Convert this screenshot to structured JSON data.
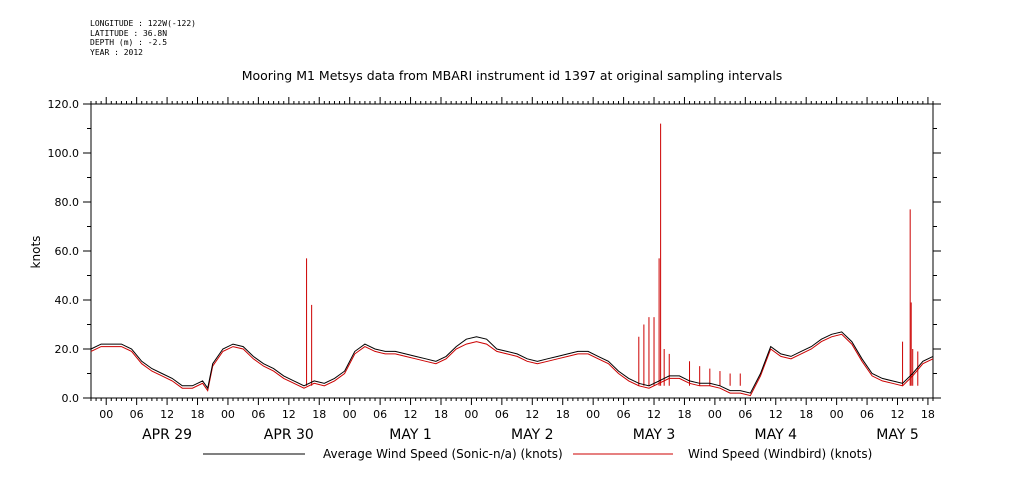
{
  "header": {
    "longitude": "LONGITUDE : 122W(-122)",
    "latitude": "LATITUDE : 36.8N",
    "depth": "DEPTH (m) : -2.5",
    "year": "YEAR : 2012"
  },
  "chart_data": {
    "type": "line",
    "title": "Mooring M1 Metsys data from MBARI instrument id 1397 at original sampling intervals",
    "ylabel": "knots",
    "xlabel": "",
    "x_unit": "hours since APR 28 21:00 (2012)",
    "xlim": [
      0,
      166
    ],
    "ylim": [
      0,
      120
    ],
    "y_ticks": [
      0,
      20,
      40,
      60,
      80,
      100,
      120
    ],
    "hour_ticks": [
      {
        "x": 3,
        "label": "00"
      },
      {
        "x": 9,
        "label": "06"
      },
      {
        "x": 15,
        "label": "12"
      },
      {
        "x": 21,
        "label": "18"
      },
      {
        "x": 27,
        "label": "00"
      },
      {
        "x": 33,
        "label": "06"
      },
      {
        "x": 39,
        "label": "12"
      },
      {
        "x": 45,
        "label": "18"
      },
      {
        "x": 51,
        "label": "00"
      },
      {
        "x": 57,
        "label": "06"
      },
      {
        "x": 63,
        "label": "12"
      },
      {
        "x": 69,
        "label": "18"
      },
      {
        "x": 75,
        "label": "00"
      },
      {
        "x": 81,
        "label": "06"
      },
      {
        "x": 87,
        "label": "12"
      },
      {
        "x": 93,
        "label": "18"
      },
      {
        "x": 99,
        "label": "00"
      },
      {
        "x": 105,
        "label": "06"
      },
      {
        "x": 111,
        "label": "12"
      },
      {
        "x": 117,
        "label": "18"
      },
      {
        "x": 123,
        "label": "00"
      },
      {
        "x": 129,
        "label": "06"
      },
      {
        "x": 135,
        "label": "12"
      },
      {
        "x": 141,
        "label": "18"
      },
      {
        "x": 147,
        "label": "00"
      },
      {
        "x": 153,
        "label": "06"
      },
      {
        "x": 159,
        "label": "12"
      },
      {
        "x": 165,
        "label": "18"
      }
    ],
    "day_labels": [
      {
        "x": 15,
        "label": "APR 29"
      },
      {
        "x": 39,
        "label": "APR 30"
      },
      {
        "x": 63,
        "label": "MAY  1"
      },
      {
        "x": 87,
        "label": "MAY  2"
      },
      {
        "x": 111,
        "label": "MAY  3"
      },
      {
        "x": 135,
        "label": "MAY  4"
      },
      {
        "x": 159,
        "label": "MAY  5"
      }
    ],
    "legend_position": "bottom",
    "series": [
      {
        "name": "Average Wind Speed (Sonic-n/a) (knots)",
        "color": "#000000",
        "points": [
          [
            0,
            20
          ],
          [
            2,
            22
          ],
          [
            4,
            22
          ],
          [
            6,
            22
          ],
          [
            8,
            20
          ],
          [
            10,
            15
          ],
          [
            12,
            12
          ],
          [
            14,
            10
          ],
          [
            16,
            8
          ],
          [
            18,
            5
          ],
          [
            20,
            5
          ],
          [
            22,
            7
          ],
          [
            23,
            4
          ],
          [
            24,
            14
          ],
          [
            26,
            20
          ],
          [
            28,
            22
          ],
          [
            30,
            21
          ],
          [
            32,
            17
          ],
          [
            34,
            14
          ],
          [
            36,
            12
          ],
          [
            38,
            9
          ],
          [
            40,
            7
          ],
          [
            42,
            5
          ],
          [
            44,
            7
          ],
          [
            46,
            6
          ],
          [
            48,
            8
          ],
          [
            50,
            11
          ],
          [
            52,
            19
          ],
          [
            54,
            22
          ],
          [
            56,
            20
          ],
          [
            58,
            19
          ],
          [
            60,
            19
          ],
          [
            62,
            18
          ],
          [
            64,
            17
          ],
          [
            66,
            16
          ],
          [
            68,
            15
          ],
          [
            70,
            17
          ],
          [
            72,
            21
          ],
          [
            74,
            24
          ],
          [
            76,
            25
          ],
          [
            78,
            24
          ],
          [
            80,
            20
          ],
          [
            82,
            19
          ],
          [
            84,
            18
          ],
          [
            86,
            16
          ],
          [
            88,
            15
          ],
          [
            90,
            16
          ],
          [
            92,
            17
          ],
          [
            94,
            18
          ],
          [
            96,
            19
          ],
          [
            98,
            19
          ],
          [
            100,
            17
          ],
          [
            102,
            15
          ],
          [
            104,
            11
          ],
          [
            106,
            8
          ],
          [
            108,
            6
          ],
          [
            110,
            5
          ],
          [
            112,
            7
          ],
          [
            114,
            9
          ],
          [
            116,
            9
          ],
          [
            118,
            7
          ],
          [
            120,
            6
          ],
          [
            122,
            6
          ],
          [
            124,
            5
          ],
          [
            126,
            3
          ],
          [
            128,
            3
          ],
          [
            130,
            2
          ],
          [
            132,
            10
          ],
          [
            134,
            21
          ],
          [
            136,
            18
          ],
          [
            138,
            17
          ],
          [
            140,
            19
          ],
          [
            142,
            21
          ],
          [
            144,
            24
          ],
          [
            146,
            26
          ],
          [
            148,
            27
          ],
          [
            150,
            23
          ],
          [
            152,
            16
          ],
          [
            154,
            10
          ],
          [
            156,
            8
          ],
          [
            158,
            7
          ],
          [
            160,
            6
          ],
          [
            162,
            10
          ],
          [
            164,
            15
          ],
          [
            166,
            17
          ]
        ]
      },
      {
        "name": "Wind Speed (Windbird) (knots)",
        "color": "#cc0000",
        "points": [
          [
            0,
            19
          ],
          [
            2,
            21
          ],
          [
            4,
            21
          ],
          [
            6,
            21
          ],
          [
            8,
            19
          ],
          [
            10,
            14
          ],
          [
            12,
            11
          ],
          [
            14,
            9
          ],
          [
            16,
            7
          ],
          [
            18,
            4
          ],
          [
            20,
            4
          ],
          [
            22,
            6
          ],
          [
            23,
            3
          ],
          [
            24,
            13
          ],
          [
            26,
            19
          ],
          [
            28,
            21
          ],
          [
            30,
            20
          ],
          [
            32,
            16
          ],
          [
            34,
            13
          ],
          [
            36,
            11
          ],
          [
            38,
            8
          ],
          [
            40,
            6
          ],
          [
            42,
            4
          ],
          [
            44,
            6
          ],
          [
            46,
            5
          ],
          [
            48,
            7
          ],
          [
            50,
            10
          ],
          [
            52,
            18
          ],
          [
            54,
            21
          ],
          [
            56,
            19
          ],
          [
            58,
            18
          ],
          [
            60,
            18
          ],
          [
            62,
            17
          ],
          [
            64,
            16
          ],
          [
            66,
            15
          ],
          [
            68,
            14
          ],
          [
            70,
            16
          ],
          [
            72,
            20
          ],
          [
            74,
            22
          ],
          [
            76,
            23
          ],
          [
            78,
            22
          ],
          [
            80,
            19
          ],
          [
            82,
            18
          ],
          [
            84,
            17
          ],
          [
            86,
            15
          ],
          [
            88,
            14
          ],
          [
            90,
            15
          ],
          [
            92,
            16
          ],
          [
            94,
            17
          ],
          [
            96,
            18
          ],
          [
            98,
            18
          ],
          [
            100,
            16
          ],
          [
            102,
            14
          ],
          [
            104,
            10
          ],
          [
            106,
            7
          ],
          [
            108,
            5
          ],
          [
            110,
            4
          ],
          [
            112,
            6
          ],
          [
            114,
            8
          ],
          [
            116,
            8
          ],
          [
            118,
            6
          ],
          [
            120,
            5
          ],
          [
            122,
            5
          ],
          [
            124,
            4
          ],
          [
            126,
            2
          ],
          [
            128,
            2
          ],
          [
            130,
            1
          ],
          [
            132,
            9
          ],
          [
            134,
            20
          ],
          [
            136,
            17
          ],
          [
            138,
            16
          ],
          [
            140,
            18
          ],
          [
            142,
            20
          ],
          [
            144,
            23
          ],
          [
            146,
            25
          ],
          [
            148,
            26
          ],
          [
            150,
            22
          ],
          [
            152,
            15
          ],
          [
            154,
            9
          ],
          [
            156,
            7
          ],
          [
            158,
            6
          ],
          [
            160,
            5
          ],
          [
            162,
            9
          ],
          [
            164,
            14
          ],
          [
            166,
            16
          ]
        ],
        "spikes": [
          [
            42.5,
            57
          ],
          [
            43.5,
            38
          ],
          [
            108,
            25
          ],
          [
            109,
            30
          ],
          [
            110,
            33
          ],
          [
            111,
            33
          ],
          [
            112,
            57
          ],
          [
            112.3,
            112
          ],
          [
            113,
            20
          ],
          [
            114,
            18
          ],
          [
            118,
            15
          ],
          [
            120,
            13
          ],
          [
            122,
            12
          ],
          [
            124,
            11
          ],
          [
            126,
            10
          ],
          [
            128,
            10
          ],
          [
            160,
            23
          ],
          [
            161.5,
            77
          ],
          [
            161.7,
            39
          ],
          [
            162,
            20
          ],
          [
            163,
            19
          ]
        ]
      }
    ]
  }
}
